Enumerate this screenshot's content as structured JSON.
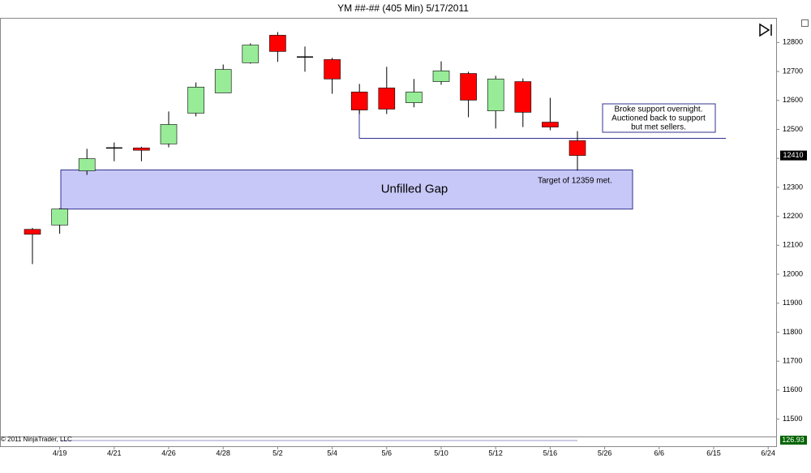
{
  "chart_data": {
    "type": "candlestick",
    "title": "YM ##-## (405 Min)  5/17/2011",
    "categories": [
      null,
      "4/19",
      null,
      "4/21",
      null,
      "4/26",
      null,
      "4/28",
      null,
      "5/2",
      null,
      "5/4",
      null,
      "5/6",
      null,
      "5/10",
      null,
      "5/12",
      null,
      "5/16",
      null,
      "5/26",
      null,
      "6/6",
      null,
      "6/15",
      null,
      "6/24"
    ],
    "open": [
      12155,
      12170,
      12357,
      12435,
      12436,
      12450,
      12556,
      12626,
      12730,
      12825,
      12749,
      12741,
      12629,
      12643,
      12592,
      12665,
      12693,
      12564,
      12665,
      12525,
      12461,
      null,
      null,
      null,
      null,
      null,
      null,
      null
    ],
    "high": [
      12160,
      12228,
      12433,
      12455,
      12440,
      12562,
      12662,
      12724,
      12797,
      12836,
      12786,
      12747,
      12657,
      12716,
      12674,
      12735,
      12699,
      12685,
      12676,
      12609,
      12494,
      null,
      null,
      null,
      null,
      null,
      null,
      null
    ],
    "low": [
      12035,
      12140,
      12343,
      12390,
      12390,
      12438,
      12545,
      12626,
      12727,
      12733,
      12699,
      12623,
      12553,
      12553,
      12576,
      12654,
      12542,
      12503,
      12508,
      12497,
      12358,
      null,
      null,
      null,
      null,
      null,
      null,
      null
    ],
    "close": [
      12138,
      12225,
      12399,
      12436,
      12428,
      12517,
      12646,
      12707,
      12791,
      12769,
      12750,
      12674,
      12567,
      12570,
      12629,
      12702,
      12601,
      12674,
      12559,
      12508,
      12410,
      null,
      null,
      null,
      null,
      null,
      null,
      null
    ],
    "up_color": "#98ec98",
    "down_color": "#ff0000",
    "ylim": [
      11440,
      12885
    ],
    "yticks": [
      11500,
      11600,
      11700,
      11800,
      11900,
      12000,
      12100,
      12200,
      12300,
      12400,
      12500,
      12600,
      12700,
      12800
    ],
    "last_price": 12410,
    "gap": {
      "label": "Unfilled Gap",
      "low": 12225,
      "high": 12360
    },
    "support": 12469,
    "annotation": [
      "Broke support overnight.",
      "Auctioned back to support",
      "but met sellers."
    ],
    "target_note": "Target of 12359 met.",
    "copyright": "© 2011 NinjaTrader, LLC",
    "indicator_value": 126.93
  }
}
